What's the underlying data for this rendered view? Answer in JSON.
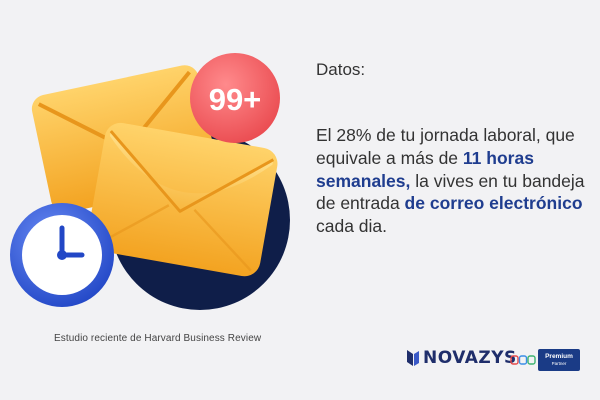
{
  "illustration": {
    "badge_count": "99+"
  },
  "caption": "Estudio reciente de Harvard Business Review",
  "label": "Datos:",
  "statement": {
    "p1": "El 28% de tu jornada laboral, que equivale a más de ",
    "h1": "11 horas semanales,",
    "p2": " la vives en tu bandeja de entrada ",
    "h2": "de correo electrónico",
    "p3": " cada dia."
  },
  "footer": {
    "brand": "NOVAZYS",
    "partner_badge": "Premium",
    "partner_sub": "Partner"
  },
  "colors": {
    "accent_blue": "#1f3d8f",
    "envelope": "#f7b53b",
    "badge_red": "#f05a5e",
    "clock_blue": "#2f5bd8",
    "dark_circle": "#0f1e49"
  }
}
